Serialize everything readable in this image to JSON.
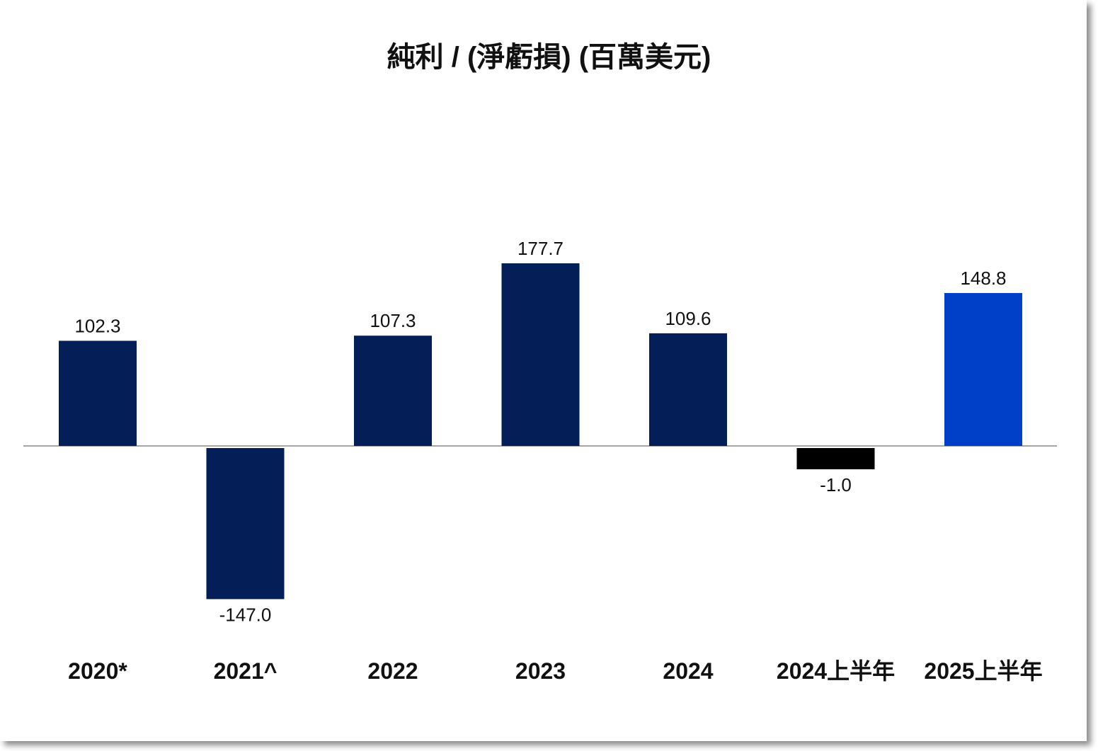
{
  "chart_data": {
    "type": "bar",
    "title": "純利 / (淨虧損) (百萬美元)",
    "xlabel": "",
    "ylabel": "",
    "categories": [
      "2020*",
      "2021^",
      "2022",
      "2023",
      "2024",
      "2024上半年",
      "2025上半年"
    ],
    "values": [
      102.3,
      -147.0,
      107.3,
      177.7,
      109.6,
      -1.0,
      148.8
    ],
    "value_labels": [
      "102.3",
      "-147.0",
      "107.3",
      "177.7",
      "109.6",
      "-1.0",
      "148.8"
    ],
    "colors": [
      "#041e57",
      "#041e57",
      "#041e57",
      "#041e57",
      "#041e57",
      "#000000",
      "#0040c8"
    ],
    "ylim": [
      -180,
      250
    ],
    "grid": false,
    "legend": "none"
  }
}
